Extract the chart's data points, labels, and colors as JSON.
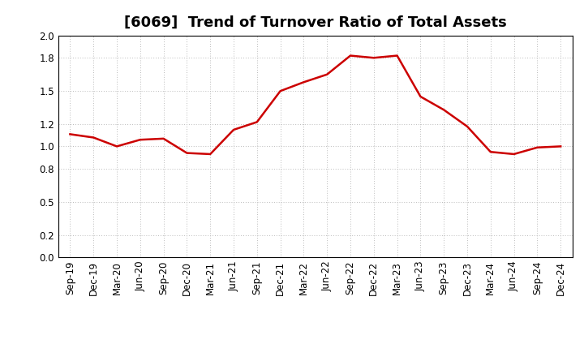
{
  "title": "[6069]  Trend of Turnover Ratio of Total Assets",
  "labels": [
    "Sep-19",
    "Dec-19",
    "Mar-20",
    "Jun-20",
    "Sep-20",
    "Dec-20",
    "Mar-21",
    "Jun-21",
    "Sep-21",
    "Dec-21",
    "Mar-22",
    "Jun-22",
    "Sep-22",
    "Dec-22",
    "Mar-23",
    "Jun-23",
    "Sep-23",
    "Dec-23",
    "Mar-24",
    "Jun-24",
    "Sep-24",
    "Dec-24"
  ],
  "values": [
    1.11,
    1.08,
    1.0,
    1.06,
    1.07,
    0.94,
    0.93,
    1.15,
    1.22,
    1.5,
    1.58,
    1.65,
    1.82,
    1.8,
    1.82,
    1.45,
    1.33,
    1.18,
    0.95,
    0.93,
    0.99,
    1.0
  ],
  "line_color": "#cc0000",
  "line_width": 1.8,
  "ylim": [
    0.0,
    2.0
  ],
  "yticks": [
    0.0,
    0.2,
    0.5,
    0.8,
    1.0,
    1.2,
    1.5,
    1.8,
    2.0
  ],
  "background_color": "#ffffff",
  "plot_bg_color": "#ffffff",
  "grid_color": "#bbbbbb",
  "title_fontsize": 13,
  "tick_fontsize": 8.5
}
